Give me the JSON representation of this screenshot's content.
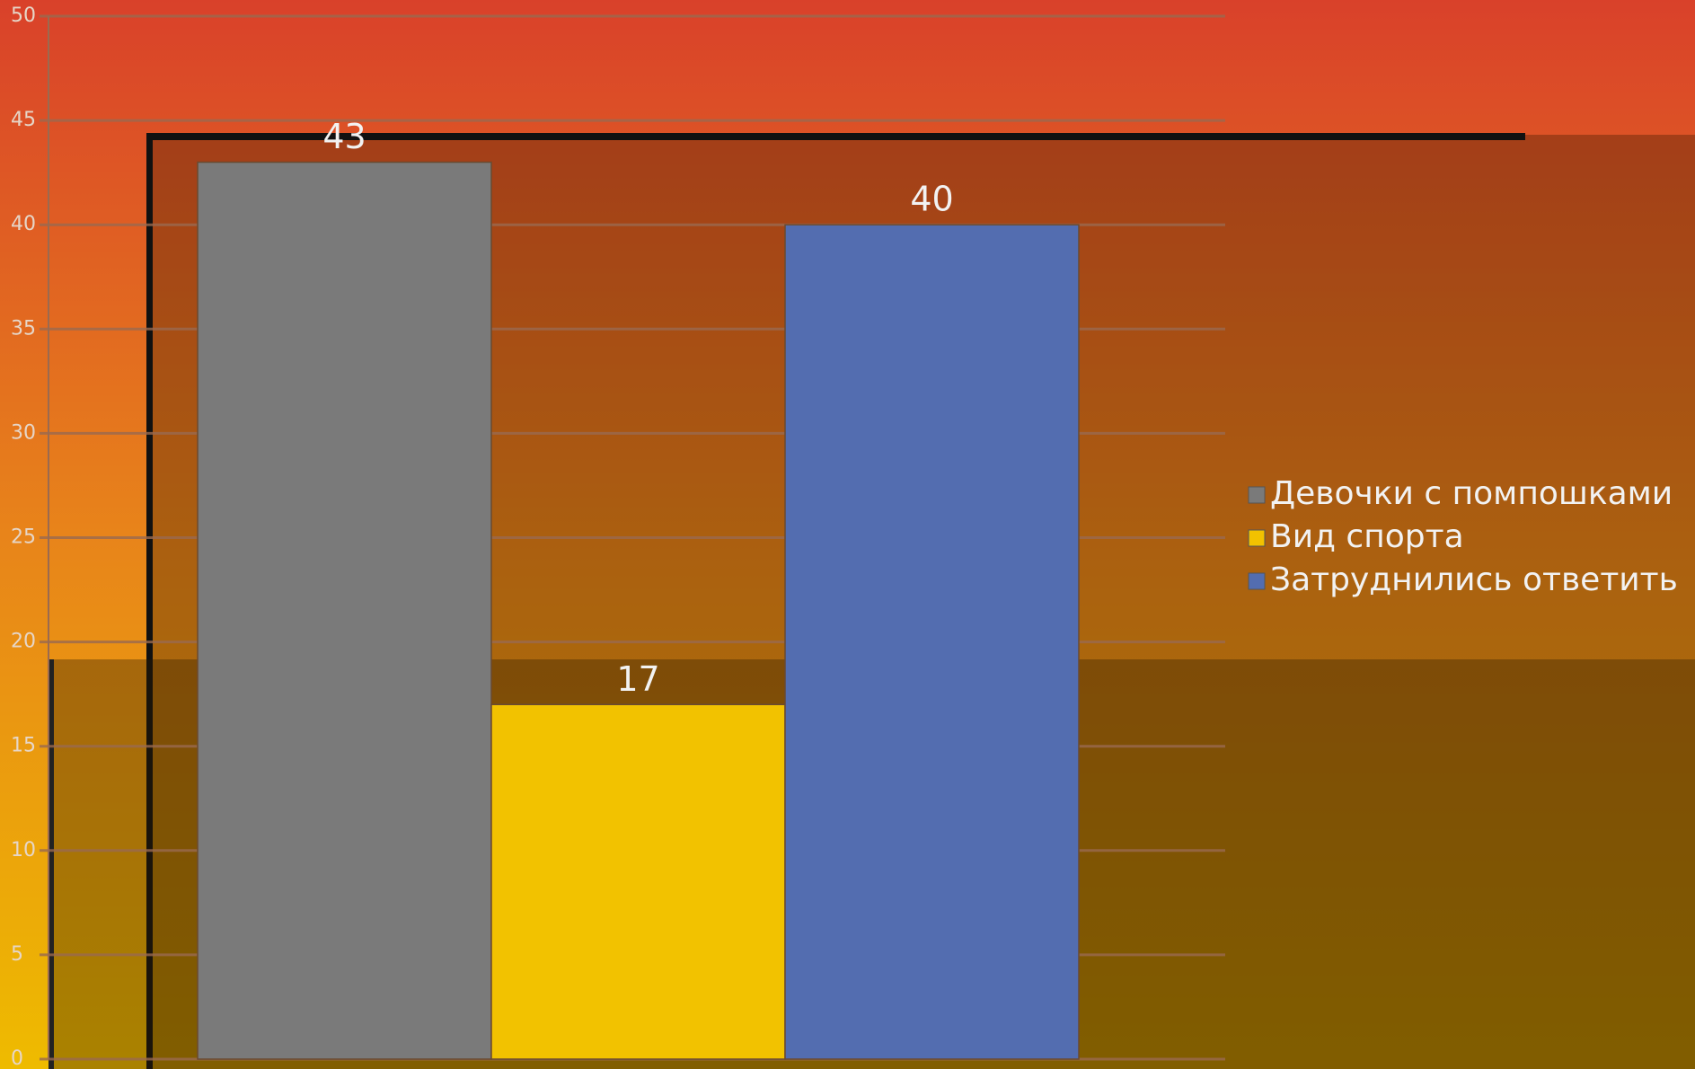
{
  "chart_data": {
    "type": "bar",
    "categories": [
      null
    ],
    "series": [
      {
        "name": "Девочки с помпошками",
        "color": "#7a7a7a",
        "values": [
          43
        ]
      },
      {
        "name": "Вид спорта",
        "color": "#f2c200",
        "values": [
          17
        ]
      },
      {
        "name": "Затруднились ответить",
        "color": "#536db0",
        "values": [
          40
        ]
      }
    ],
    "ylim": [
      0,
      50
    ],
    "yticks": [
      0,
      5,
      10,
      15,
      20,
      25,
      30,
      35,
      40,
      45,
      50
    ],
    "grid": true,
    "legend": "right"
  }
}
